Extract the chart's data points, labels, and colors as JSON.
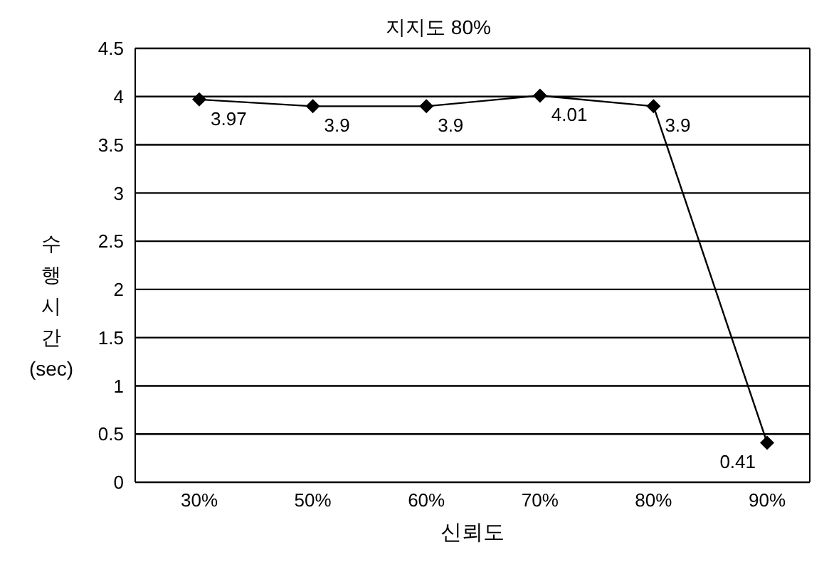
{
  "chart_data": {
    "type": "line",
    "title": "지지도 80%",
    "xlabel": "신뢰도",
    "ylabel": "수행시간 (sec)",
    "categories": [
      "30%",
      "50%",
      "60%",
      "70%",
      "80%",
      "90%"
    ],
    "series": [
      {
        "color": "#000000",
        "values": [
          3.97,
          3.9,
          3.9,
          4.01,
          3.9,
          0.41
        ]
      }
    ],
    "ylim": [
      0,
      4.5
    ],
    "yticks": [
      0,
      0.5,
      1,
      1.5,
      2,
      2.5,
      3,
      3.5,
      4,
      4.5
    ],
    "grid": "y",
    "marker": "diamond",
    "line_style": "solid",
    "data_labels": true,
    "legend": false
  }
}
